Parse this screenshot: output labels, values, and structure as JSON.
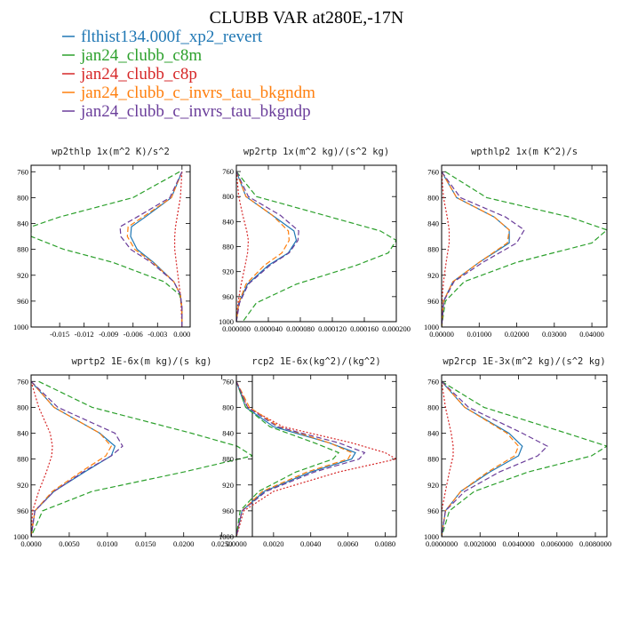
{
  "figure": {
    "title": "CLUBB VAR at280E,-17N"
  },
  "legend": [
    {
      "name": "flthist134.000f_xp2_revert",
      "color": "#1f77b4",
      "dash": "solid"
    },
    {
      "name": "jan24_clubb_c8m",
      "color": "#2ca02c",
      "dash": "dashed"
    },
    {
      "name": "jan24_clubb_c8p",
      "color": "#d62728",
      "dash": "dotted"
    },
    {
      "name": "jan24_clubb_c_invrs_tau_bkgndm",
      "color": "#ff7f0e",
      "dash": "dashed"
    },
    {
      "name": "jan24_clubb_c_invrs_tau_bkgndp",
      "color": "#6a3d9a",
      "dash": "dashed"
    }
  ],
  "chart_data": [
    {
      "type": "line",
      "title": "wp2thlp  1x(m^2 K)/s^2",
      "ylim": [
        1000,
        750
      ],
      "xlim": [
        -0.0185,
        0.001
      ],
      "yticks": [
        760,
        800,
        840,
        880,
        920,
        960,
        1000
      ],
      "xticks": [
        -0.015,
        -0.012,
        -0.009,
        -0.006,
        -0.003,
        0.0
      ],
      "xtick_labels": [
        "-0.015",
        "-0.012",
        "-0.009",
        "-0.006",
        "-0.003",
        "0.000"
      ],
      "y": [
        760,
        800,
        830,
        845,
        860,
        880,
        900,
        930,
        950,
        970,
        1000
      ],
      "series": [
        {
          "values": [
            0.0,
            -0.0013,
            -0.0045,
            -0.0062,
            -0.0063,
            -0.0055,
            -0.0035,
            -0.001,
            -0.0002,
            0.0,
            0.0
          ]
        },
        {
          "values": [
            -0.0003,
            -0.006,
            -0.015,
            -0.0185,
            -0.0185,
            -0.0145,
            -0.0085,
            -0.0022,
            -0.0003,
            0.0,
            0.0
          ]
        },
        {
          "values": [
            0.0,
            -0.0002,
            -0.0006,
            -0.0008,
            -0.0009,
            -0.0009,
            -0.0007,
            -0.0004,
            -0.0002,
            -0.0001,
            0.0
          ]
        },
        {
          "values": [
            0.0,
            -0.0013,
            -0.0048,
            -0.0066,
            -0.0067,
            -0.0058,
            -0.0036,
            -0.001,
            -0.0002,
            0.0,
            0.0
          ]
        },
        {
          "values": [
            0.0,
            -0.0015,
            -0.0055,
            -0.0076,
            -0.0075,
            -0.0063,
            -0.0038,
            -0.001,
            -0.0002,
            0.0,
            0.0
          ]
        }
      ]
    },
    {
      "type": "line",
      "title": "wp2rtp  1x(m^2 kg)/(s^2 kg)",
      "ylim": [
        1000,
        750
      ],
      "xlim": [
        0.0,
        0.0002
      ],
      "yticks": [
        760,
        800,
        840,
        880,
        920,
        960,
        1000
      ],
      "xticks": [
        0.0,
        4e-05,
        8e-05,
        0.00012,
        0.00016,
        0.0002
      ],
      "xtick_labels": [
        "0.000000",
        "0.000040",
        "0.000080",
        "0.000120",
        "0.000160",
        "0.000200"
      ],
      "y": [
        760,
        800,
        830,
        855,
        870,
        890,
        910,
        940,
        970,
        1000
      ],
      "series": [
        {
          "values": [
            0.0,
            1.2e-05,
            4.5e-05,
            7.2e-05,
            7.5e-05,
            6.5e-05,
            4e-05,
            1.4e-05,
            3e-06,
            0.0
          ]
        },
        {
          "values": [
            0.0,
            2.5e-05,
            0.00011,
            0.00018,
            0.0002,
            0.00019,
            0.00015,
            7.5e-05,
            2.5e-05,
            8e-06
          ]
        },
        {
          "values": [
            0.0,
            3e-06,
            8e-06,
            1.3e-05,
            1.5e-05,
            1.4e-05,
            1.1e-05,
            6e-06,
            2e-06,
            0.0
          ]
        },
        {
          "values": [
            0.0,
            1.2e-05,
            4.5e-05,
            6.5e-05,
            6.6e-05,
            5.7e-05,
            3.5e-05,
            1.2e-05,
            3e-06,
            0.0
          ]
        },
        {
          "values": [
            0.0,
            1.5e-05,
            5.5e-05,
            7.8e-05,
            7.7e-05,
            6.6e-05,
            4.2e-05,
            1.5e-05,
            4e-06,
            0.0
          ]
        }
      ]
    },
    {
      "type": "line",
      "title": "wpthlp2  1x(m K^2)/s",
      "ylim": [
        1000,
        750
      ],
      "xlim": [
        0.0,
        0.044
      ],
      "yticks": [
        760,
        800,
        840,
        880,
        920,
        960,
        1000
      ],
      "xticks": [
        0.0,
        0.01,
        0.02,
        0.03,
        0.04
      ],
      "xtick_labels": [
        "0.00000",
        "0.01000",
        "0.02000",
        "0.03000",
        "0.04000"
      ],
      "y": [
        760,
        800,
        830,
        850,
        870,
        900,
        930,
        960,
        1000
      ],
      "series": [
        {
          "values": [
            0.0,
            0.004,
            0.014,
            0.018,
            0.018,
            0.01,
            0.003,
            0.0005,
            0.0
          ]
        },
        {
          "values": [
            0.001,
            0.012,
            0.034,
            0.044,
            0.04,
            0.02,
            0.006,
            0.001,
            0.0
          ]
        },
        {
          "values": [
            0.0,
            0.0005,
            0.0015,
            0.002,
            0.002,
            0.0012,
            0.0005,
            0.0001,
            0.0
          ]
        },
        {
          "values": [
            0.0,
            0.004,
            0.014,
            0.018,
            0.0175,
            0.01,
            0.003,
            0.0005,
            0.0
          ]
        },
        {
          "values": [
            0.0,
            0.005,
            0.017,
            0.022,
            0.02,
            0.011,
            0.0033,
            0.0006,
            0.0
          ]
        }
      ]
    },
    {
      "type": "line",
      "title": "wprtp2  1E-6x(m kg)/(s kg)",
      "ylim": [
        1000,
        750
      ],
      "xlim": [
        0.0,
        0.029
      ],
      "yticks": [
        760,
        800,
        840,
        880,
        920,
        960,
        1000
      ],
      "xticks": [
        0.0,
        0.005,
        0.01,
        0.015,
        0.02,
        0.025
      ],
      "xtick_labels": [
        "0.0000",
        "0.0050",
        "0.0100",
        "0.0150",
        "0.0200",
        "0.0250"
      ],
      "y": [
        760,
        800,
        840,
        860,
        875,
        900,
        930,
        960,
        1000
      ],
      "series": [
        {
          "values": [
            0.0,
            0.003,
            0.009,
            0.011,
            0.0105,
            0.007,
            0.003,
            0.0005,
            0.0
          ]
        },
        {
          "values": [
            0.001,
            0.008,
            0.021,
            0.027,
            0.029,
            0.02,
            0.008,
            0.0015,
            0.0
          ]
        },
        {
          "values": [
            0.0,
            0.001,
            0.0025,
            0.0028,
            0.0027,
            0.002,
            0.001,
            0.0002,
            0.0
          ]
        },
        {
          "values": [
            0.0,
            0.003,
            0.009,
            0.0105,
            0.0098,
            0.0065,
            0.0028,
            0.0005,
            0.0
          ]
        },
        {
          "values": [
            0.0,
            0.0035,
            0.011,
            0.012,
            0.0105,
            0.0068,
            0.003,
            0.0005,
            0.0
          ]
        }
      ]
    },
    {
      "type": "line",
      "title": "rcp2  1E-6x(kg^2)/(kg^2)",
      "ylim": [
        1000,
        750
      ],
      "xlim": [
        0.0,
        0.0086
      ],
      "yticks": [
        760,
        800,
        840,
        880,
        920,
        960,
        1000
      ],
      "xticks": [
        0.0,
        0.002,
        0.004,
        0.006,
        0.008
      ],
      "xtick_labels": [
        "0.0000",
        "0.0020",
        "0.0040",
        "0.0060",
        "0.0080"
      ],
      "y": [
        760,
        800,
        830,
        855,
        870,
        880,
        900,
        930,
        960,
        1000
      ],
      "series": [
        {
          "values": [
            0.0,
            0.0005,
            0.002,
            0.005,
            0.0064,
            0.0062,
            0.004,
            0.0015,
            0.0003,
            0.0
          ]
        },
        {
          "values": [
            0.0,
            0.0005,
            0.0018,
            0.0042,
            0.0055,
            0.0052,
            0.0032,
            0.0012,
            0.0002,
            0.0
          ]
        },
        {
          "values": [
            0.0,
            0.0006,
            0.0025,
            0.0062,
            0.008,
            0.0086,
            0.0055,
            0.002,
            0.0004,
            0.0
          ]
        },
        {
          "values": [
            0.0,
            0.0007,
            0.0023,
            0.005,
            0.0062,
            0.006,
            0.0038,
            0.0014,
            0.0003,
            0.0
          ]
        },
        {
          "values": [
            0.0,
            0.0006,
            0.0022,
            0.0055,
            0.0069,
            0.0066,
            0.0042,
            0.0016,
            0.0003,
            0.0
          ]
        }
      ]
    },
    {
      "type": "line",
      "title": "wp2rcp  1E-3x(m^2 kg)/(s^2 kg)",
      "ylim": [
        1000,
        750
      ],
      "xlim": [
        0.0,
        0.0086
      ],
      "yticks": [
        760,
        800,
        840,
        880,
        920,
        960,
        1000
      ],
      "xticks": [
        0.0,
        0.002,
        0.004,
        0.006,
        0.008
      ],
      "xtick_labels": [
        "0.0000000",
        "0.0020000",
        "0.0040000",
        "0.0060000",
        "0.0080000"
      ],
      "y": [
        760,
        800,
        840,
        860,
        875,
        900,
        930,
        960,
        1000
      ],
      "series": [
        {
          "values": [
            0.0,
            0.0012,
            0.0035,
            0.0042,
            0.004,
            0.0025,
            0.001,
            0.0002,
            0.0
          ]
        },
        {
          "values": [
            0.0,
            0.0022,
            0.0065,
            0.0086,
            0.0078,
            0.0045,
            0.0017,
            0.0004,
            0.0
          ]
        },
        {
          "values": [
            0.0,
            0.0002,
            0.0005,
            0.0006,
            0.0006,
            0.0004,
            0.0002,
            0.0,
            0.0
          ]
        },
        {
          "values": [
            0.0,
            0.0012,
            0.0034,
            0.004,
            0.0038,
            0.0024,
            0.001,
            0.0002,
            0.0
          ]
        },
        {
          "values": [
            0.0,
            0.0014,
            0.0042,
            0.0055,
            0.005,
            0.003,
            0.0012,
            0.0002,
            0.0
          ]
        }
      ]
    }
  ]
}
